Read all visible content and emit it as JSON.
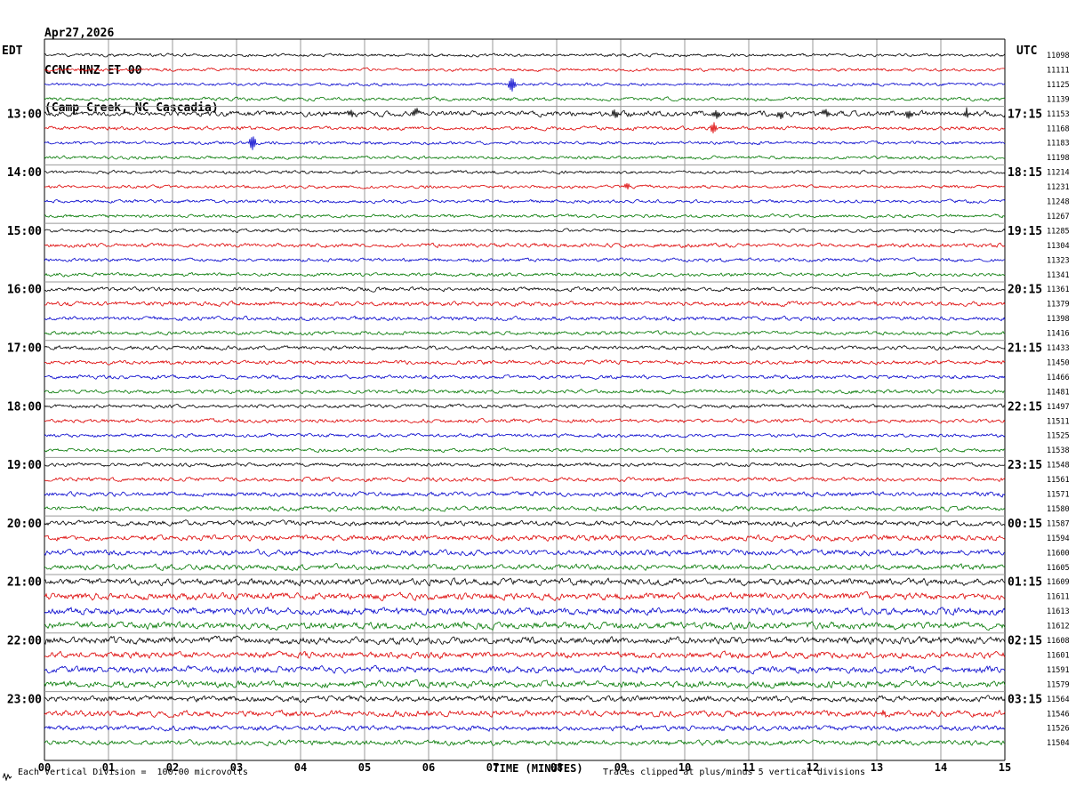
{
  "header": {
    "date": "Apr27,2026",
    "station": "CCNC HNZ ET 00",
    "location": "(Camp Creek, NC Cascadia)"
  },
  "axes": {
    "left_label": "EDT",
    "right_label": "UTC",
    "x_label": "TIME (MINUTES)"
  },
  "footer": {
    "left": "Each Vertical Division =  100.00 microvolts",
    "right": "Traces clipped at plus/minus 5 vertical divisions"
  },
  "chart_data": {
    "type": "line",
    "x_range": [
      0,
      15
    ],
    "x_ticks": [
      "00",
      "01",
      "02",
      "03",
      "04",
      "05",
      "06",
      "07",
      "08",
      "09",
      "10",
      "11",
      "12",
      "13",
      "14",
      "15"
    ],
    "left_hour_labels": [
      "13:00",
      "14:00",
      "15:00",
      "16:00",
      "17:00",
      "18:00",
      "19:00",
      "20:00",
      "21:00",
      "22:00",
      "23:00"
    ],
    "right_hour_labels": [
      "17:15",
      "18:15",
      "19:15",
      "20:15",
      "21:15",
      "22:15",
      "23:15",
      "00:15",
      "01:15",
      "02:15",
      "03:15"
    ],
    "vertical_division_microvolts": 100.0,
    "clip_divisions": 5,
    "colors": {
      "black": "#000000",
      "red": "#dd0000",
      "blue": "#0000cc",
      "green": "#007700",
      "grid": "#999999",
      "frame": "#000000"
    },
    "rows": [
      {
        "color": "black",
        "count": 11098,
        "amp": 1.2
      },
      {
        "color": "red",
        "count": 11111,
        "amp": 1.2
      },
      {
        "color": "blue",
        "count": 11125,
        "amp": 1.2
      },
      {
        "color": "green",
        "count": 11139,
        "amp": 1.4
      },
      {
        "color": "black",
        "count": 11153,
        "amp": 2.2
      },
      {
        "color": "red",
        "count": 11168,
        "amp": 1.5
      },
      {
        "color": "blue",
        "count": 11183,
        "amp": 1.3
      },
      {
        "color": "green",
        "count": 11198,
        "amp": 1.3
      },
      {
        "color": "black",
        "count": 11214,
        "amp": 1.3
      },
      {
        "color": "red",
        "count": 11231,
        "amp": 1.3
      },
      {
        "color": "blue",
        "count": 11248,
        "amp": 1.3
      },
      {
        "color": "green",
        "count": 11267,
        "amp": 1.3
      },
      {
        "color": "black",
        "count": 11285,
        "amp": 1.3
      },
      {
        "color": "red",
        "count": 11304,
        "amp": 1.6
      },
      {
        "color": "blue",
        "count": 11323,
        "amp": 1.4
      },
      {
        "color": "green",
        "count": 11341,
        "amp": 1.4
      },
      {
        "color": "black",
        "count": 11361,
        "amp": 1.6
      },
      {
        "color": "red",
        "count": 11379,
        "amp": 1.8
      },
      {
        "color": "blue",
        "count": 11398,
        "amp": 1.6
      },
      {
        "color": "green",
        "count": 11416,
        "amp": 1.5
      },
      {
        "color": "black",
        "count": 11433,
        "amp": 1.6
      },
      {
        "color": "red",
        "count": 11450,
        "amp": 1.6
      },
      {
        "color": "blue",
        "count": 11466,
        "amp": 1.5
      },
      {
        "color": "green",
        "count": 11481,
        "amp": 1.5
      },
      {
        "color": "black",
        "count": 11497,
        "amp": 1.5
      },
      {
        "color": "red",
        "count": 11511,
        "amp": 1.5
      },
      {
        "color": "blue",
        "count": 11525,
        "amp": 1.4
      },
      {
        "color": "green",
        "count": 11538,
        "amp": 1.4
      },
      {
        "color": "black",
        "count": 11548,
        "amp": 1.5
      },
      {
        "color": "red",
        "count": 11561,
        "amp": 1.6
      },
      {
        "color": "blue",
        "count": 11571,
        "amp": 1.8
      },
      {
        "color": "green",
        "count": 11580,
        "amp": 1.8
      },
      {
        "color": "black",
        "count": 11587,
        "amp": 2.0
      },
      {
        "color": "red",
        "count": 11594,
        "amp": 2.2
      },
      {
        "color": "blue",
        "count": 11600,
        "amp": 2.2
      },
      {
        "color": "green",
        "count": 11605,
        "amp": 2.2
      },
      {
        "color": "black",
        "count": 11609,
        "amp": 2.6
      },
      {
        "color": "red",
        "count": 11611,
        "amp": 2.8
      },
      {
        "color": "blue",
        "count": 11613,
        "amp": 2.8
      },
      {
        "color": "green",
        "count": 11612,
        "amp": 2.8
      },
      {
        "color": "black",
        "count": 11608,
        "amp": 2.8
      },
      {
        "color": "red",
        "count": 11601,
        "amp": 2.6
      },
      {
        "color": "blue",
        "count": 11591,
        "amp": 2.6
      },
      {
        "color": "green",
        "count": 11579,
        "amp": 2.6
      },
      {
        "color": "black",
        "count": 11564,
        "amp": 2.4
      },
      {
        "color": "red",
        "count": 11546,
        "amp": 2.4
      },
      {
        "color": "blue",
        "count": 11526,
        "amp": 2.0
      },
      {
        "color": "green",
        "count": 11504,
        "amp": 2.0
      }
    ],
    "events": [
      {
        "row": 2,
        "minute": 7.3,
        "amp": 9
      },
      {
        "row": 4,
        "minute": 4.8,
        "amp": 4
      },
      {
        "row": 4,
        "minute": 5.8,
        "amp": 4
      },
      {
        "row": 4,
        "minute": 8.9,
        "amp": 5
      },
      {
        "row": 4,
        "minute": 10.5,
        "amp": 5
      },
      {
        "row": 4,
        "minute": 11.5,
        "amp": 4
      },
      {
        "row": 4,
        "minute": 12.2,
        "amp": 4
      },
      {
        "row": 4,
        "minute": 13.5,
        "amp": 5
      },
      {
        "row": 4,
        "minute": 14.4,
        "amp": 5
      },
      {
        "row": 5,
        "minute": 10.45,
        "amp": 7
      },
      {
        "row": 6,
        "minute": 3.25,
        "amp": 9
      },
      {
        "row": 9,
        "minute": 9.1,
        "amp": 4
      },
      {
        "row": 45,
        "minute": 13.1,
        "amp": 4
      }
    ]
  }
}
